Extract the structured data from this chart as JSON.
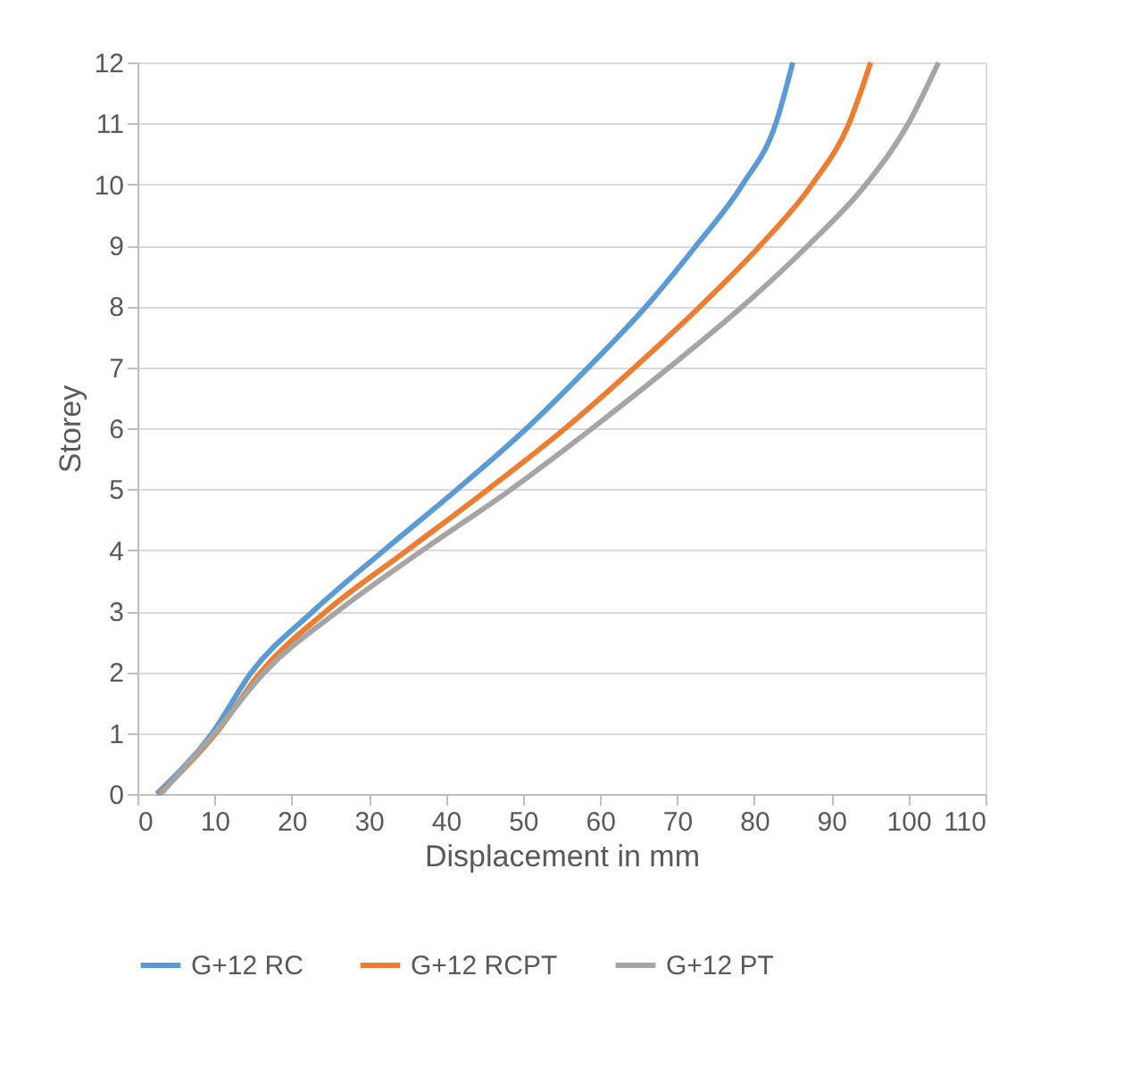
{
  "chart_data": {
    "type": "line",
    "xlabel": "Displacement in mm",
    "ylabel": "Storey",
    "xlim": [
      0,
      110
    ],
    "xticks": [
      0,
      10,
      20,
      30,
      40,
      50,
      60,
      70,
      80,
      90,
      100,
      110
    ],
    "ylim": [
      0,
      12
    ],
    "yticks": [
      0,
      1,
      2,
      3,
      4,
      5,
      6,
      7,
      8,
      9,
      10,
      11,
      12
    ],
    "grid": "y",
    "legend": "bottom",
    "marker": "none",
    "line_style": "solid",
    "series": [
      {
        "name": "G+12 RC",
        "color": "#5b9bd5",
        "x": [
          2.5,
          9.7,
          14.8,
          22.8,
          32,
          41.5,
          50.5,
          58.5,
          66,
          72.5,
          78.5,
          82.8,
          85.0
        ],
        "values": [
          0,
          1,
          2,
          3,
          4,
          5,
          6,
          7,
          8,
          9,
          10,
          11,
          12
        ]
      },
      {
        "name": "G+12 RCPT",
        "color": "#ed7d31",
        "x": [
          2.8,
          10.2,
          16,
          24.5,
          35,
          45.5,
          55.5,
          64.5,
          73,
          80.8,
          87.5,
          92.3,
          95.1
        ],
        "values": [
          0,
          1,
          2,
          3,
          4,
          5,
          6,
          7,
          8,
          9,
          10,
          11,
          12
        ]
      },
      {
        "name": "G+12 PT",
        "color": "#a5a5a5",
        "x": [
          3.0,
          10.0,
          16.5,
          26,
          37,
          48.5,
          59,
          69,
          78.5,
          87,
          94.5,
          100,
          103.9
        ],
        "values": [
          0,
          1,
          2,
          3,
          4,
          5,
          6,
          7,
          8,
          9,
          10,
          11,
          12
        ]
      }
    ]
  }
}
